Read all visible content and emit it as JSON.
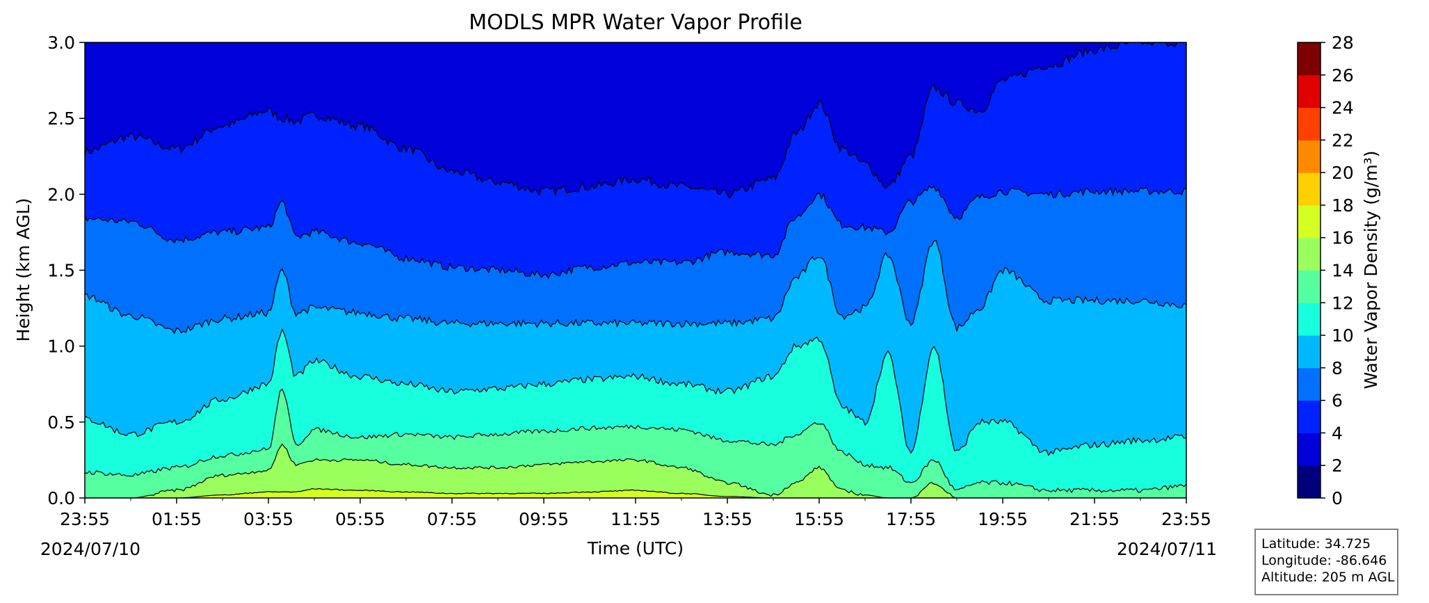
{
  "chart_data": {
    "type": "contourf",
    "title": "MODLS MPR Water Vapor Profile",
    "xlabel": "Time (UTC)",
    "ylabel": "Height (km AGL)",
    "colorbar_label": "Water Vapor Density (g/m³)",
    "x_ticks": [
      "23:55",
      "01:55",
      "03:55",
      "05:55",
      "07:55",
      "09:55",
      "11:55",
      "13:55",
      "15:55",
      "17:55",
      "19:55",
      "21:55",
      "23:55"
    ],
    "x_start_date": "2024/07/10",
    "x_end_date": "2024/07/11",
    "ylim": [
      0,
      3.0
    ],
    "y_ticks": [
      "0.0",
      "0.5",
      "1.0",
      "1.5",
      "2.0",
      "2.5",
      "3.0"
    ],
    "levels": [
      0,
      2,
      4,
      6,
      8,
      10,
      12,
      14,
      16,
      18,
      20,
      22,
      24,
      26,
      28
    ],
    "level_colors": [
      "#00007f",
      "#0000da",
      "#0022ff",
      "#0070ff",
      "#00b8ff",
      "#18ffdd",
      "#56ff9f",
      "#9aff5c",
      "#d4ff22",
      "#ffd000",
      "#ff8a00",
      "#ff4000",
      "#e00000",
      "#7f0000"
    ],
    "contour_heights_km": {
      "note_hours": [
        0,
        1,
        2,
        3,
        4,
        4.3,
        4.6,
        5,
        6,
        7,
        8,
        9,
        10,
        11,
        12,
        13,
        14,
        15,
        15.5,
        16,
        16.5,
        17,
        17.5,
        18,
        18.5,
        19,
        19.5,
        20,
        21,
        22,
        23,
        24
      ],
      "2": [
        2.28,
        2.38,
        2.3,
        2.45,
        2.55,
        2.5,
        2.48,
        2.52,
        2.45,
        2.3,
        2.15,
        2.08,
        2.02,
        2.05,
        2.1,
        2.05,
        2.0,
        2.1,
        2.4,
        2.6,
        2.3,
        2.2,
        2.05,
        2.25,
        2.7,
        2.6,
        2.55,
        2.75,
        2.85,
        2.95,
        3.0,
        3.0
      ],
      "4": [
        1.84,
        1.82,
        1.7,
        1.75,
        1.78,
        1.95,
        1.72,
        1.75,
        1.68,
        1.58,
        1.52,
        1.5,
        1.47,
        1.52,
        1.55,
        1.55,
        1.62,
        1.6,
        1.85,
        2.0,
        1.8,
        1.78,
        1.75,
        1.95,
        2.05,
        1.85,
        1.98,
        2.02,
        2.0,
        2.02,
        2.02,
        2.02
      ],
      "6": [
        1.33,
        1.2,
        1.1,
        1.18,
        1.22,
        1.5,
        1.22,
        1.25,
        1.22,
        1.18,
        1.15,
        1.15,
        1.15,
        1.15,
        1.15,
        1.15,
        1.15,
        1.18,
        1.45,
        1.6,
        1.2,
        1.25,
        1.6,
        1.15,
        1.7,
        1.12,
        1.25,
        1.5,
        1.3,
        1.3,
        1.3,
        1.27
      ],
      "8": [
        0.52,
        0.42,
        0.5,
        0.65,
        0.75,
        1.1,
        0.8,
        0.9,
        0.8,
        0.75,
        0.7,
        0.72,
        0.75,
        0.78,
        0.8,
        0.75,
        0.7,
        0.8,
        1.0,
        1.05,
        0.6,
        0.5,
        0.95,
        0.3,
        1.0,
        0.3,
        0.5,
        0.5,
        0.3,
        0.35,
        0.38,
        0.4
      ],
      "10": [
        0.17,
        0.15,
        0.2,
        0.28,
        0.32,
        0.72,
        0.35,
        0.45,
        0.4,
        0.42,
        0.4,
        0.42,
        0.44,
        0.46,
        0.47,
        0.45,
        0.38,
        0.35,
        0.42,
        0.5,
        0.3,
        0.22,
        0.2,
        0.1,
        0.25,
        0.05,
        0.1,
        0.1,
        0.05,
        0.05,
        0.05,
        0.08
      ],
      "12": [
        0.0,
        0.0,
        0.05,
        0.15,
        0.18,
        0.35,
        0.22,
        0.25,
        0.25,
        0.22,
        0.2,
        0.2,
        0.22,
        0.24,
        0.25,
        0.2,
        0.1,
        0.02,
        0.1,
        0.2,
        0.05,
        0.02,
        0.0,
        0.0,
        0.1,
        0.0,
        0.0,
        0.0,
        0.0,
        0.0,
        0.0,
        0.0
      ],
      "14": [
        0.0,
        0.0,
        0.0,
        0.02,
        0.04,
        0.04,
        0.04,
        0.06,
        0.05,
        0.04,
        0.03,
        0.03,
        0.03,
        0.04,
        0.05,
        0.03,
        0.01,
        0.0,
        0.0,
        0.0,
        0.0,
        0.0,
        0.0,
        0.0,
        0.0,
        0.0,
        0.0,
        0.0,
        0.0,
        0.0,
        0.0,
        0.0
      ]
    }
  },
  "infobox": {
    "latitude": "Latitude: 34.725",
    "longitude": "Longitude: -86.646",
    "altitude": "Altitude: 205 m AGL"
  }
}
